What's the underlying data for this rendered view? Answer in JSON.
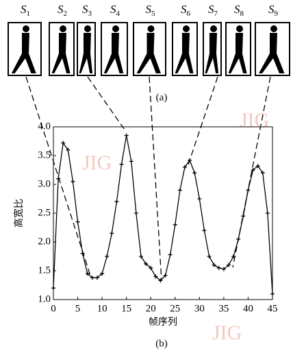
{
  "silhouettes": [
    {
      "symbol": "S",
      "index": "1"
    },
    {
      "symbol": "S",
      "index": "2"
    },
    {
      "symbol": "S",
      "index": "3"
    },
    {
      "symbol": "S",
      "index": "4"
    },
    {
      "symbol": "S",
      "index": "5"
    },
    {
      "symbol": "S",
      "index": "6"
    },
    {
      "symbol": "S",
      "index": "7"
    },
    {
      "symbol": "S",
      "index": "8"
    },
    {
      "symbol": "S",
      "index": "9"
    }
  ],
  "caption_a": "(a)",
  "caption_b": "(b)",
  "watermark": "JIG",
  "chart_data": {
    "type": "line",
    "x_label": "帧序列",
    "y_label": "高宽比",
    "x": [
      0,
      1,
      2,
      3,
      4,
      5,
      6,
      7,
      8,
      9,
      10,
      11,
      12,
      13,
      14,
      15,
      16,
      17,
      18,
      19,
      20,
      21,
      22,
      23,
      24,
      25,
      26,
      27,
      28,
      29,
      30,
      31,
      32,
      33,
      34,
      35,
      36,
      37,
      38,
      39,
      40,
      41,
      42,
      43,
      44,
      45
    ],
    "values": [
      1.2,
      3.1,
      3.72,
      3.6,
      3.05,
      2.35,
      1.8,
      1.45,
      1.38,
      1.38,
      1.45,
      1.75,
      2.15,
      2.7,
      3.35,
      3.85,
      3.4,
      2.5,
      1.75,
      1.62,
      1.55,
      1.4,
      1.33,
      1.42,
      1.78,
      2.3,
      2.9,
      3.3,
      3.42,
      3.2,
      2.75,
      2.2,
      1.75,
      1.6,
      1.55,
      1.53,
      1.6,
      1.75,
      2.05,
      2.45,
      2.9,
      3.25,
      3.32,
      3.2,
      2.5,
      1.1
    ],
    "color": "#000000",
    "xlim": [
      0,
      45
    ],
    "ylim": [
      1.0,
      4.0
    ],
    "xticks": [
      0,
      5,
      10,
      15,
      20,
      25,
      30,
      35,
      40,
      45
    ],
    "yticks": [
      {
        "value": 1.0,
        "label": "1.0"
      },
      1.5,
      {
        "value": 2.0,
        "label": "2.0"
      },
      2.5,
      {
        "value": 3.0,
        "label": "3.0"
      },
      3.5,
      {
        "value": 4.0,
        "label": "4.0"
      }
    ]
  }
}
